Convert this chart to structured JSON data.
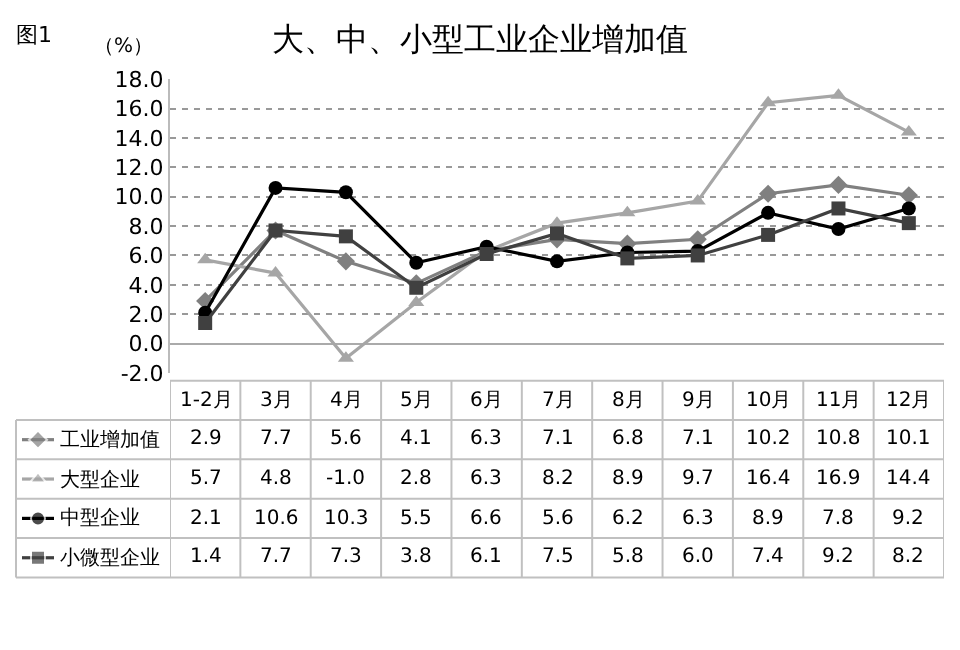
{
  "chart_data": {
    "type": "line",
    "title": "大、中、小型工业企业增加值",
    "ylabel": "（%）",
    "annotations": [
      "图1"
    ],
    "categories": [
      "1-2月",
      "3月",
      "4月",
      "5月",
      "6月",
      "7月",
      "8月",
      "9月",
      "10月",
      "11月",
      "12月"
    ],
    "series": [
      {
        "name": "工业增加值",
        "color": "#808080",
        "marker": "diamond",
        "values": [
          2.9,
          7.7,
          5.6,
          4.1,
          6.3,
          7.1,
          6.8,
          7.1,
          10.2,
          10.8,
          10.1
        ],
        "value_labels": [
          "2.9",
          "7.7",
          "5.6",
          "4.1",
          "6.3",
          "7.1",
          "6.8",
          "7.1",
          "10.2",
          "10.8",
          "10.1"
        ]
      },
      {
        "name": "大型企业",
        "color": "#a6a6a6",
        "marker": "triangle",
        "values": [
          5.7,
          4.8,
          -1.0,
          2.8,
          6.3,
          8.2,
          8.9,
          9.7,
          16.4,
          16.9,
          14.4
        ],
        "value_labels": [
          "5.7",
          "4.8",
          "-1.0",
          "2.8",
          "6.3",
          "8.2",
          "8.9",
          "9.7",
          "16.4",
          "16.9",
          "14.4"
        ]
      },
      {
        "name": "中型企业",
        "color": "#000000",
        "marker": "circle",
        "values": [
          2.1,
          10.6,
          10.3,
          5.5,
          6.6,
          5.6,
          6.2,
          6.3,
          8.9,
          7.8,
          9.2
        ],
        "value_labels": [
          "2.1",
          "10.6",
          "10.3",
          "5.5",
          "6.6",
          "5.6",
          "6.2",
          "6.3",
          "8.9",
          "7.8",
          "9.2"
        ]
      },
      {
        "name": "小微型企业",
        "color": "#404040",
        "marker": "square",
        "values": [
          1.4,
          7.7,
          7.3,
          3.8,
          6.1,
          7.5,
          5.8,
          6.0,
          7.4,
          9.2,
          8.2
        ],
        "value_labels": [
          "1.4",
          "7.7",
          "7.3",
          "3.8",
          "6.1",
          "7.5",
          "5.8",
          "6.0",
          "7.4",
          "9.2",
          "8.2"
        ]
      }
    ],
    "ylim": [
      -2,
      18
    ],
    "yticks": [
      {
        "value": -2,
        "label": "-2.0"
      },
      {
        "value": 0,
        "label": "0.0"
      },
      {
        "value": 2,
        "label": "2.0"
      },
      {
        "value": 4,
        "label": "4.0"
      },
      {
        "value": 6,
        "label": "6.0"
      },
      {
        "value": 8,
        "label": "8.0"
      },
      {
        "value": 10,
        "label": "10.0"
      },
      {
        "value": 12,
        "label": "12.0"
      },
      {
        "value": 14,
        "label": "14.0"
      },
      {
        "value": 16,
        "label": "16.0"
      },
      {
        "value": 18,
        "label": "18.0"
      }
    ],
    "grid": "y",
    "legend": "bottom",
    "line_style": "solid"
  }
}
